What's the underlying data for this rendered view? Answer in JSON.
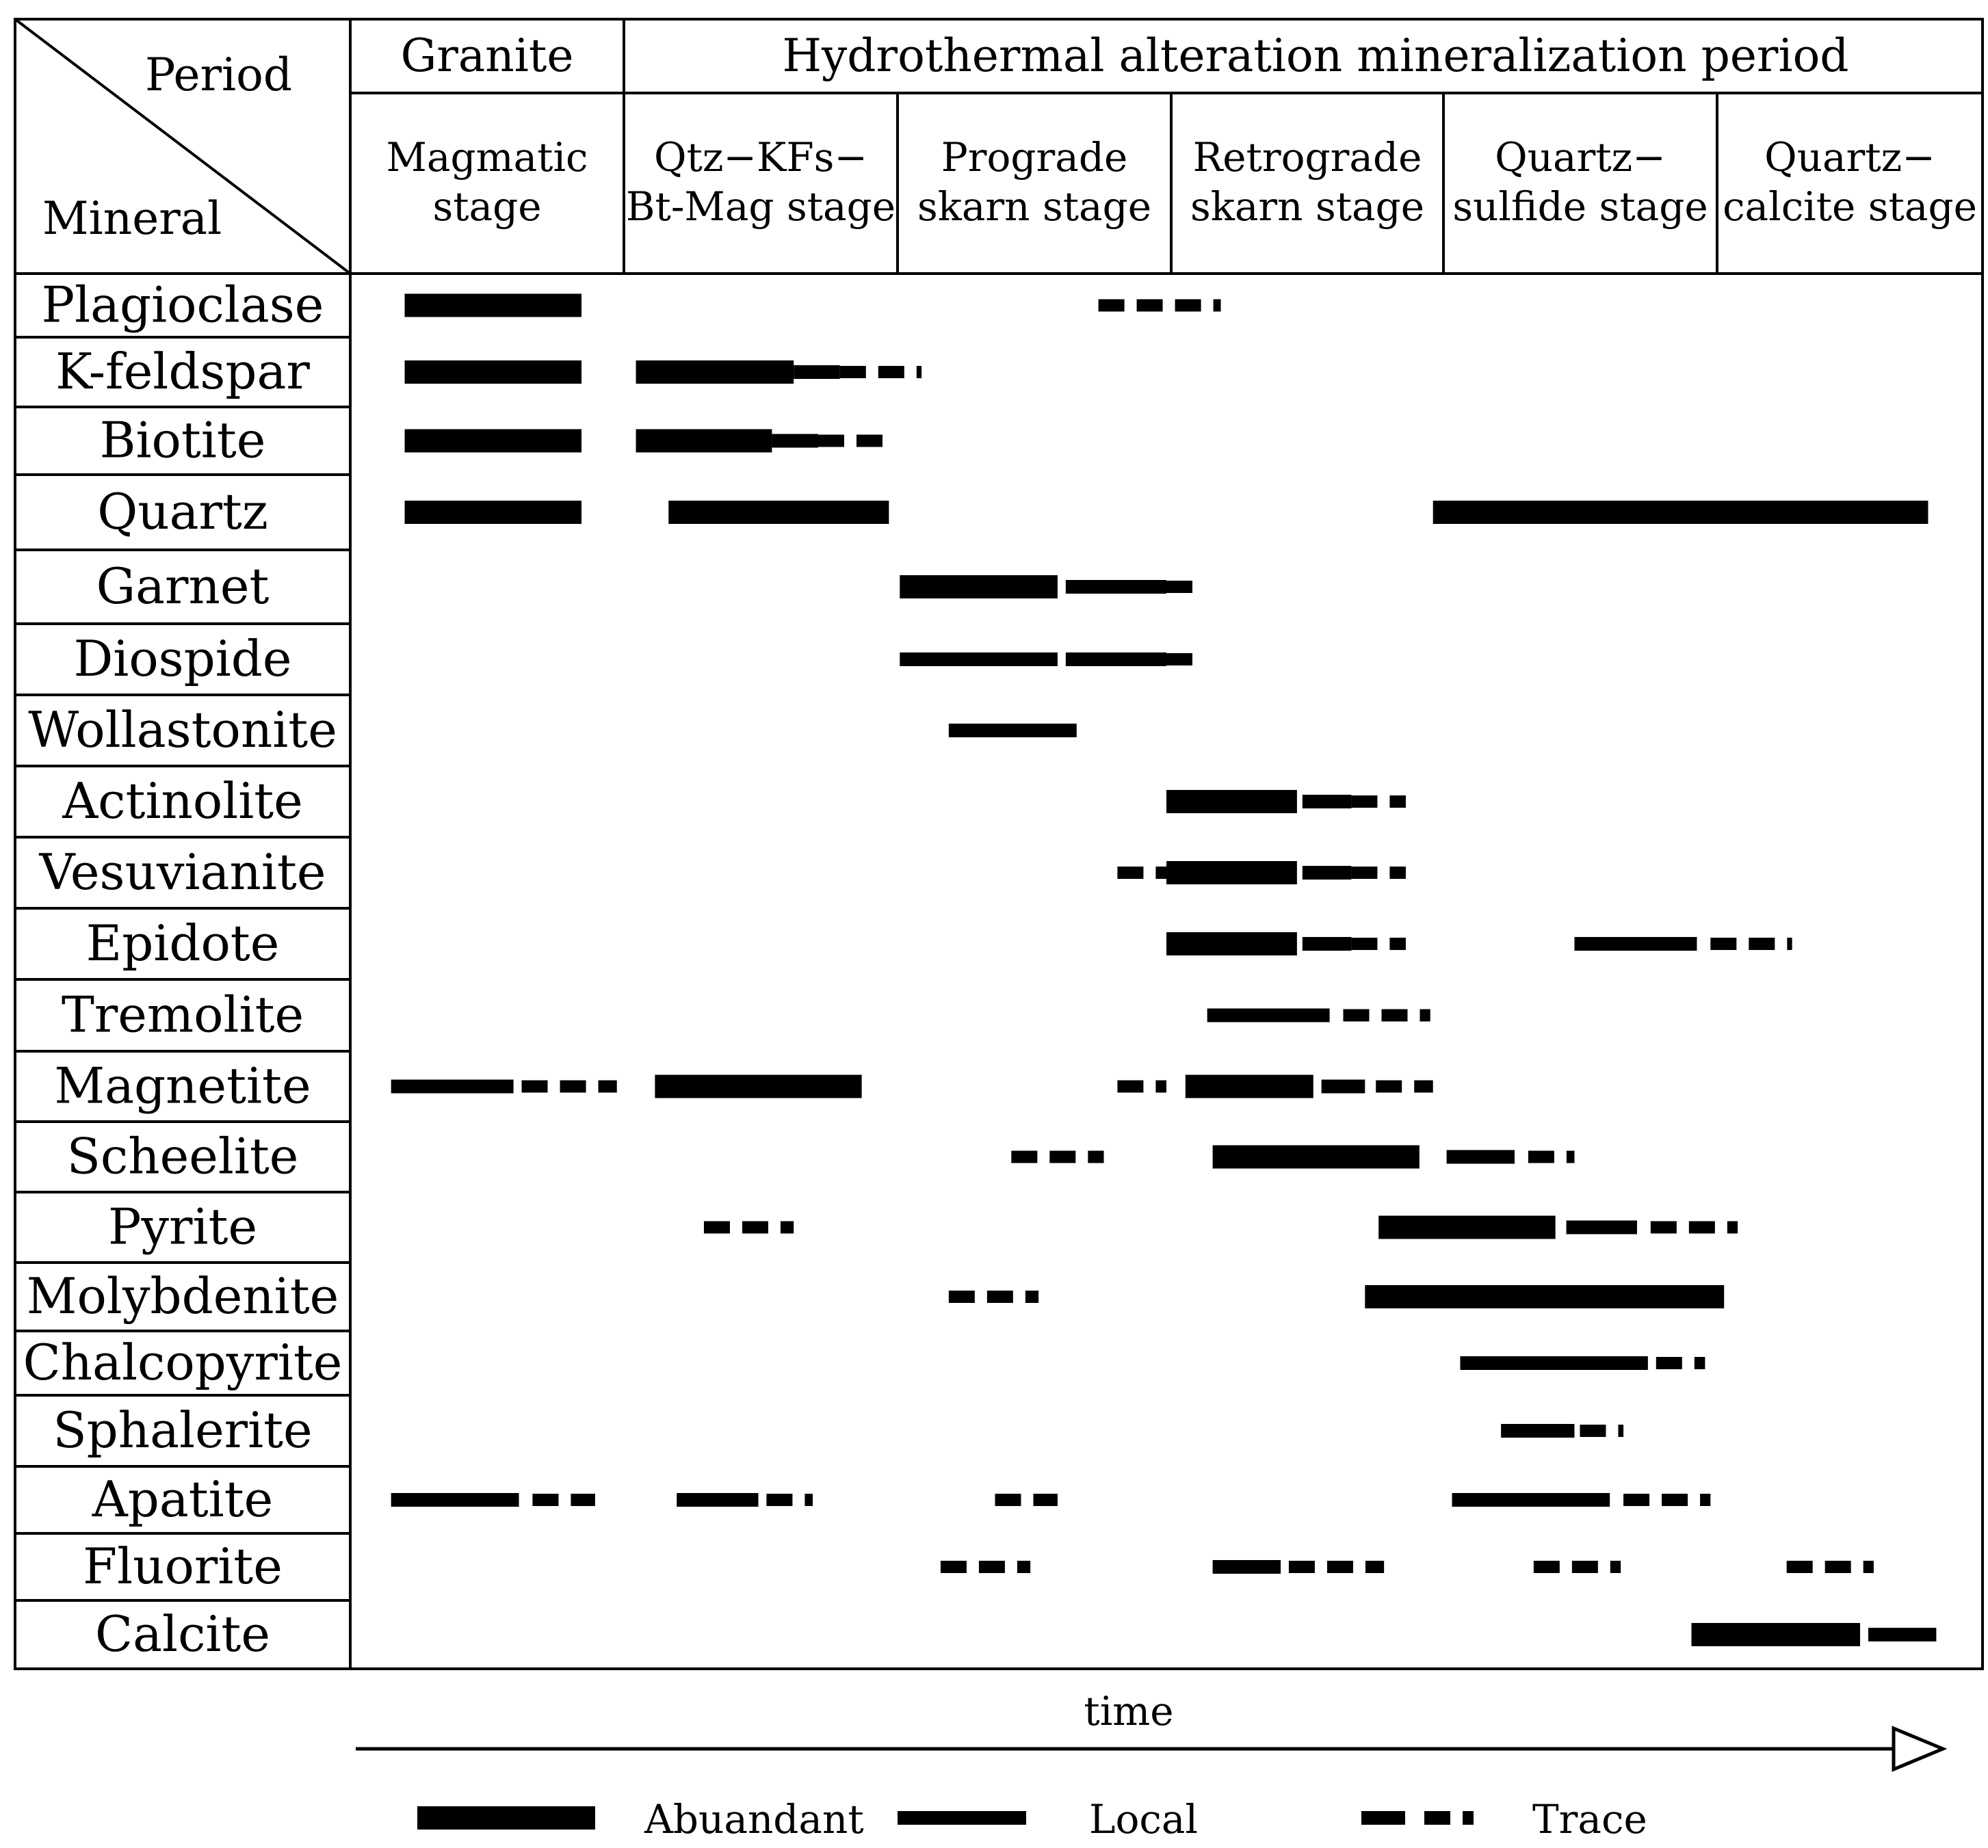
{
  "header": {
    "corner_period": "Period",
    "corner_mineral": "Mineral",
    "granite": "Granite",
    "hydrothermal": "Hydrothermal alteration mineralization period"
  },
  "stages": [
    {
      "line1": "Magmatic",
      "line2": "stage"
    },
    {
      "line1": "Qtz−KFs−",
      "line2": "Bt-Mag stage"
    },
    {
      "line1": "Prograde",
      "line2": "skarn  stage"
    },
    {
      "line1": "Retrograde",
      "line2": "skarn  stage"
    },
    {
      "line1": "Quartz−",
      "line2": "sulfide  stage"
    },
    {
      "line1": "Quartz−",
      "line2": "calcite  stage"
    }
  ],
  "axis": {
    "label": "time"
  },
  "legend": {
    "abundant": "Abuandant",
    "local": "Local",
    "trace": "Trace"
  },
  "minerals": [
    {
      "name": "Plagioclase",
      "segments": [
        {
          "t": "abundant",
          "s": 0.2,
          "e": 0.85
        },
        {
          "t": "trace",
          "s": 2.75,
          "e": 3.2
        }
      ]
    },
    {
      "name": "K-feldspar",
      "segments": [
        {
          "t": "abundant",
          "s": 0.2,
          "e": 0.85
        },
        {
          "t": "abundant",
          "s": 1.05,
          "e": 1.63
        },
        {
          "t": "local",
          "s": 1.63,
          "e": 1.8
        },
        {
          "t": "trace",
          "s": 1.8,
          "e": 2.1
        }
      ]
    },
    {
      "name": "Biotite",
      "segments": [
        {
          "t": "abundant",
          "s": 0.2,
          "e": 0.85
        },
        {
          "t": "abundant",
          "s": 1.05,
          "e": 1.55
        },
        {
          "t": "local",
          "s": 1.55,
          "e": 1.72
        },
        {
          "t": "trace",
          "s": 1.72,
          "e": 1.98
        }
      ]
    },
    {
      "name": "Quartz",
      "segments": [
        {
          "t": "abundant",
          "s": 0.2,
          "e": 0.85
        },
        {
          "t": "abundant",
          "s": 1.17,
          "e": 1.98
        },
        {
          "t": "abundant",
          "s": 3.98,
          "e": 5.8
        }
      ]
    },
    {
      "name": "Garnet",
      "segments": [
        {
          "t": "abundant",
          "s": 2.02,
          "e": 2.6
        },
        {
          "t": "local",
          "s": 2.63,
          "e": 3.0
        },
        {
          "t": "trace",
          "s": 3.0,
          "e": 3.1
        }
      ]
    },
    {
      "name": "Diospide",
      "segments": [
        {
          "t": "local",
          "s": 2.02,
          "e": 2.6
        },
        {
          "t": "local",
          "s": 2.63,
          "e": 3.0
        },
        {
          "t": "trace",
          "s": 3.0,
          "e": 3.12
        }
      ]
    },
    {
      "name": "Wollastonite",
      "segments": [
        {
          "t": "local",
          "s": 2.2,
          "e": 2.67
        }
      ]
    },
    {
      "name": "Actinolite",
      "segments": [
        {
          "t": "abundant",
          "s": 3.0,
          "e": 3.48
        },
        {
          "t": "local",
          "s": 3.5,
          "e": 3.68
        },
        {
          "t": "trace",
          "s": 3.68,
          "e": 3.88
        }
      ]
    },
    {
      "name": "Vesuvianite",
      "segments": [
        {
          "t": "trace",
          "s": 2.82,
          "e": 3.0
        },
        {
          "t": "abundant",
          "s": 3.0,
          "e": 3.48
        },
        {
          "t": "local",
          "s": 3.5,
          "e": 3.68
        },
        {
          "t": "trace",
          "s": 3.68,
          "e": 3.88
        }
      ]
    },
    {
      "name": "Epidote",
      "segments": [
        {
          "t": "abundant",
          "s": 3.0,
          "e": 3.48
        },
        {
          "t": "local",
          "s": 3.5,
          "e": 3.68
        },
        {
          "t": "trace",
          "s": 3.68,
          "e": 3.88
        },
        {
          "t": "local",
          "s": 4.5,
          "e": 4.95
        },
        {
          "t": "trace",
          "s": 5.0,
          "e": 5.3
        }
      ]
    },
    {
      "name": "Tremolite",
      "segments": [
        {
          "t": "local",
          "s": 3.15,
          "e": 3.6
        },
        {
          "t": "trace",
          "s": 3.65,
          "e": 3.97
        }
      ]
    },
    {
      "name": "Magnetite",
      "segments": [
        {
          "t": "local",
          "s": 0.15,
          "e": 0.6
        },
        {
          "t": "trace",
          "s": 0.63,
          "e": 0.98
        },
        {
          "t": "abundant",
          "s": 1.12,
          "e": 1.88
        },
        {
          "t": "trace",
          "s": 2.82,
          "e": 3.0
        },
        {
          "t": "abundant",
          "s": 3.07,
          "e": 3.54
        },
        {
          "t": "local",
          "s": 3.57,
          "e": 3.73
        },
        {
          "t": "trace",
          "s": 3.77,
          "e": 3.98
        }
      ]
    },
    {
      "name": "Scheelite",
      "segments": [
        {
          "t": "trace",
          "s": 2.43,
          "e": 2.77
        },
        {
          "t": "abundant",
          "s": 3.17,
          "e": 3.93
        },
        {
          "t": "local",
          "s": 4.03,
          "e": 4.28
        },
        {
          "t": "trace",
          "s": 4.33,
          "e": 4.5
        }
      ]
    },
    {
      "name": "Pyrite",
      "segments": [
        {
          "t": "trace",
          "s": 1.3,
          "e": 1.63
        },
        {
          "t": "abundant",
          "s": 3.78,
          "e": 4.43
        },
        {
          "t": "local",
          "s": 4.47,
          "e": 4.73
        },
        {
          "t": "trace",
          "s": 4.78,
          "e": 5.1
        }
      ]
    },
    {
      "name": "Molybdenite",
      "segments": [
        {
          "t": "trace",
          "s": 2.2,
          "e": 2.53
        },
        {
          "t": "abundant",
          "s": 3.73,
          "e": 5.05
        }
      ]
    },
    {
      "name": "Chalcopyrite",
      "segments": [
        {
          "t": "local",
          "s": 4.08,
          "e": 4.77
        },
        {
          "t": "trace",
          "s": 4.8,
          "e": 4.98
        }
      ]
    },
    {
      "name": "Sphalerite",
      "segments": [
        {
          "t": "local",
          "s": 4.23,
          "e": 4.5
        },
        {
          "t": "trace",
          "s": 4.52,
          "e": 4.68
        }
      ]
    },
    {
      "name": "Apatite",
      "segments": [
        {
          "t": "local",
          "s": 0.15,
          "e": 0.62
        },
        {
          "t": "trace",
          "s": 0.67,
          "e": 0.9
        },
        {
          "t": "local",
          "s": 1.2,
          "e": 1.5
        },
        {
          "t": "trace",
          "s": 1.53,
          "e": 1.7
        },
        {
          "t": "trace",
          "s": 2.37,
          "e": 2.6
        },
        {
          "t": "local",
          "s": 4.05,
          "e": 4.63
        },
        {
          "t": "trace",
          "s": 4.68,
          "e": 5.0
        }
      ]
    },
    {
      "name": "Fluorite",
      "segments": [
        {
          "t": "trace",
          "s": 2.17,
          "e": 2.5
        },
        {
          "t": "local",
          "s": 3.17,
          "e": 3.42
        },
        {
          "t": "trace",
          "s": 3.45,
          "e": 3.8
        },
        {
          "t": "trace",
          "s": 4.35,
          "e": 4.67
        },
        {
          "t": "trace",
          "s": 5.28,
          "e": 5.6
        }
      ]
    },
    {
      "name": "Calcite",
      "segments": [
        {
          "t": "abundant",
          "s": 4.93,
          "e": 5.55
        },
        {
          "t": "local",
          "s": 5.58,
          "e": 5.83
        }
      ]
    }
  ]
}
